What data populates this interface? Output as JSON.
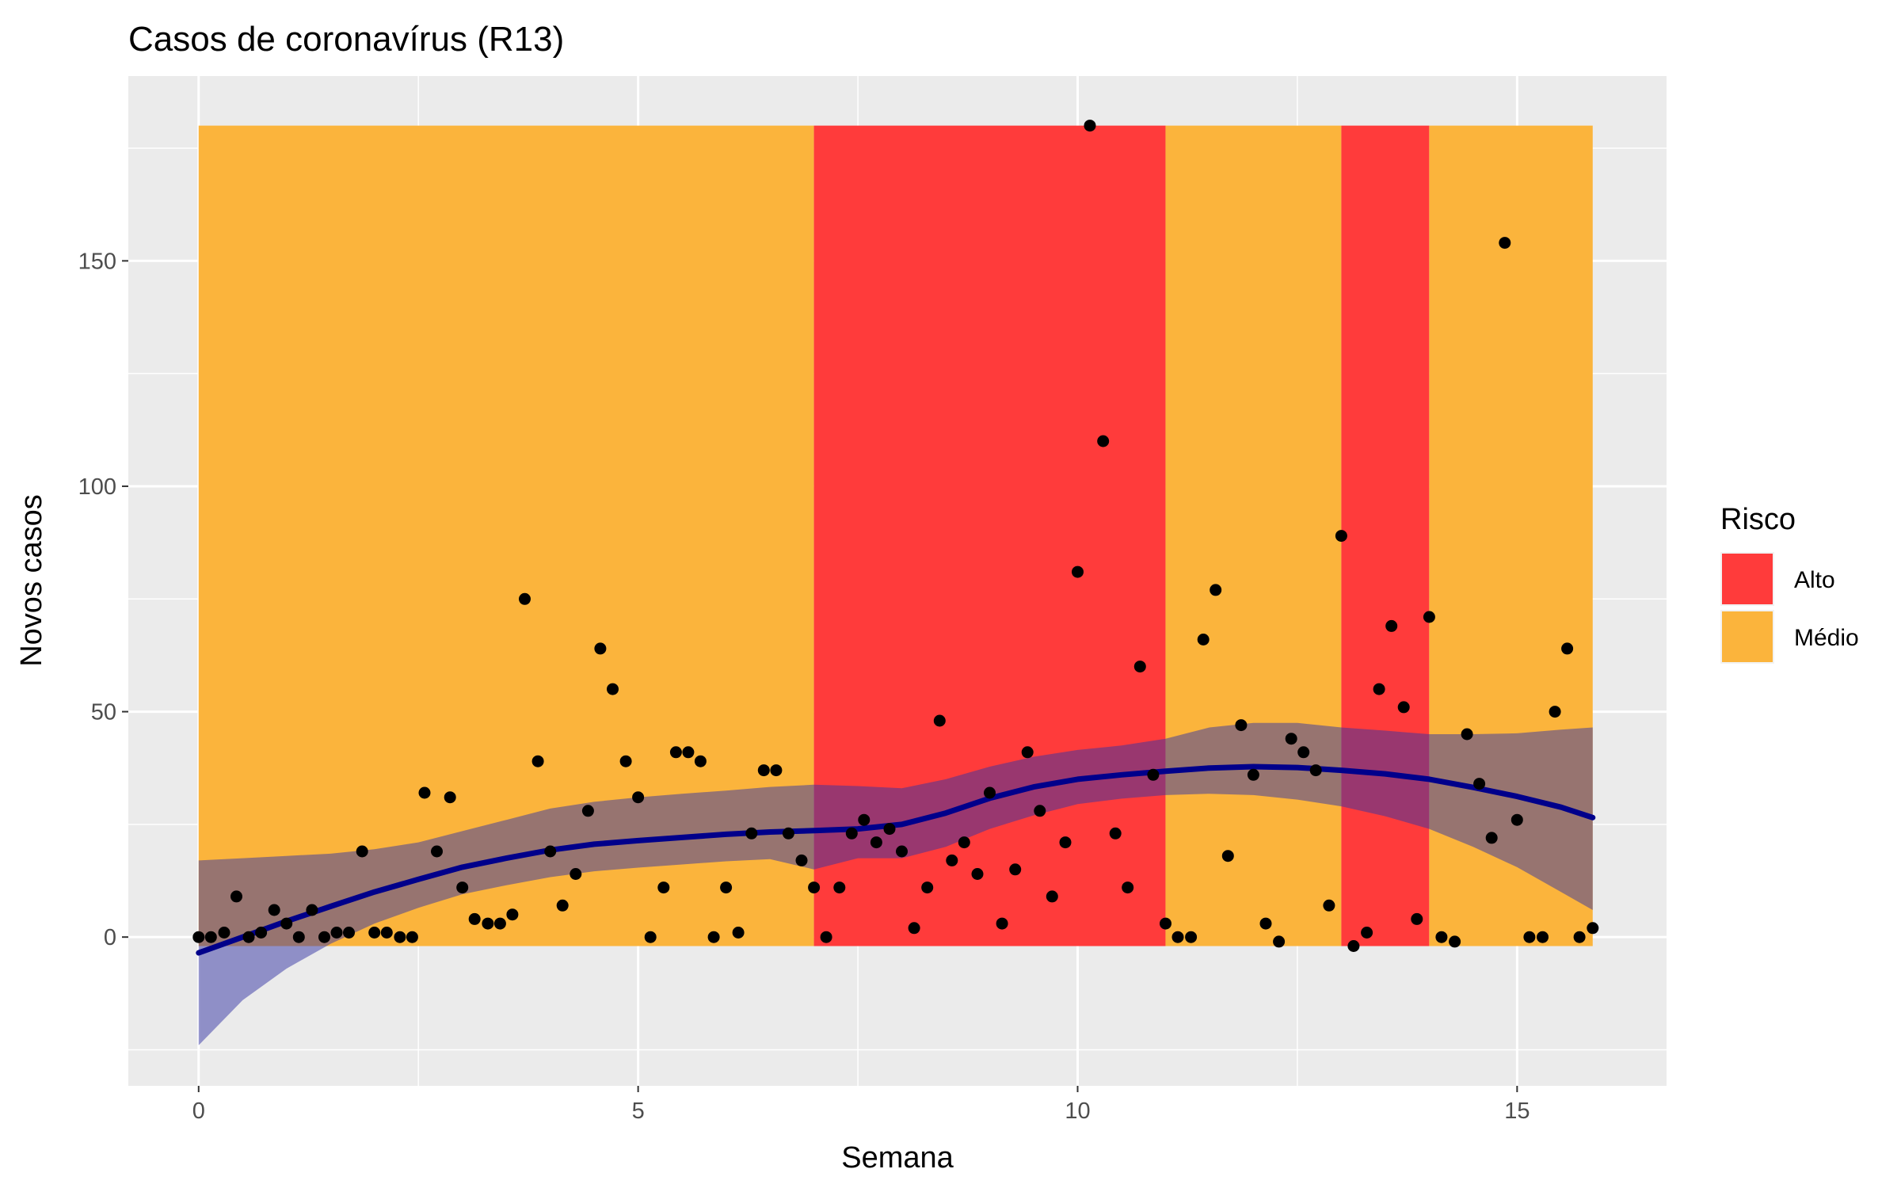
{
  "chart_data": {
    "type": "scatter",
    "title": "Casos de coronavírus (R13)",
    "xlabel": "Semana",
    "ylabel": "Novos casos",
    "xlim": [
      -0.8,
      16.7
    ],
    "ylim": [
      -33,
      191
    ],
    "x_ticks": [
      0,
      5,
      10,
      15
    ],
    "y_ticks": [
      0,
      50,
      100,
      150
    ],
    "x_tick_labels": [
      "0",
      "5",
      "10",
      "15"
    ],
    "y_tick_labels": [
      "0",
      "50",
      "100",
      "150"
    ],
    "grid": true,
    "legend": {
      "title": "Risco",
      "position": "right",
      "entries": [
        {
          "label": "Alto",
          "color": "#ff3b3b"
        },
        {
          "label": "Médio",
          "color": "#fbb43c"
        }
      ]
    },
    "colors": {
      "panel": "#ebebeb",
      "grid": "#ffffff",
      "alto": "#ff3b3b",
      "medio": "#fbb43c",
      "points": "#000000",
      "trend": "#00008b",
      "ribbon": "#3333a3"
    },
    "risk_bands": [
      {
        "risk": "Médio",
        "x_start": 0,
        "x_end": 7,
        "y_min": -2,
        "y_max": 180
      },
      {
        "risk": "Alto",
        "x_start": 7,
        "x_end": 11,
        "y_min": -2,
        "y_max": 180
      },
      {
        "risk": "Médio",
        "x_start": 11,
        "x_end": 13,
        "y_min": -2,
        "y_max": 180
      },
      {
        "risk": "Alto",
        "x_start": 13,
        "x_end": 14,
        "y_min": -2,
        "y_max": 180
      },
      {
        "risk": "Médio",
        "x_start": 14,
        "x_end": 15.86,
        "y_min": -2,
        "y_max": 180
      }
    ],
    "points": [
      [
        0,
        0
      ],
      [
        0.14,
        0
      ],
      [
        0.29,
        1
      ],
      [
        0.43,
        9
      ],
      [
        0.57,
        0
      ],
      [
        0.71,
        1
      ],
      [
        0.86,
        6
      ],
      [
        1.0,
        3
      ],
      [
        1.14,
        0
      ],
      [
        1.29,
        6
      ],
      [
        1.43,
        0
      ],
      [
        1.57,
        1
      ],
      [
        1.71,
        1
      ],
      [
        1.86,
        19
      ],
      [
        2.0,
        1
      ],
      [
        2.14,
        1
      ],
      [
        2.29,
        0
      ],
      [
        2.43,
        0
      ],
      [
        2.57,
        32
      ],
      [
        2.71,
        19
      ],
      [
        2.86,
        31
      ],
      [
        3.0,
        11
      ],
      [
        3.14,
        4
      ],
      [
        3.29,
        3
      ],
      [
        3.43,
        3
      ],
      [
        3.57,
        5
      ],
      [
        3.71,
        75
      ],
      [
        3.86,
        39
      ],
      [
        4.0,
        19
      ],
      [
        4.14,
        7
      ],
      [
        4.29,
        14
      ],
      [
        4.43,
        28
      ],
      [
        4.57,
        64
      ],
      [
        4.71,
        55
      ],
      [
        4.86,
        39
      ],
      [
        5.0,
        31
      ],
      [
        5.14,
        0
      ],
      [
        5.29,
        11
      ],
      [
        5.43,
        41
      ],
      [
        5.57,
        41
      ],
      [
        5.71,
        39
      ],
      [
        5.86,
        0
      ],
      [
        6.0,
        11
      ],
      [
        6.14,
        1
      ],
      [
        6.29,
        23
      ],
      [
        6.43,
        37
      ],
      [
        6.57,
        37
      ],
      [
        6.71,
        23
      ],
      [
        6.86,
        17
      ],
      [
        7.0,
        11
      ],
      [
        7.14,
        0
      ],
      [
        7.29,
        11
      ],
      [
        7.43,
        23
      ],
      [
        7.57,
        26
      ],
      [
        7.71,
        21
      ],
      [
        7.86,
        24
      ],
      [
        8.0,
        19
      ],
      [
        8.14,
        2
      ],
      [
        8.29,
        11
      ],
      [
        8.43,
        48
      ],
      [
        8.57,
        17
      ],
      [
        8.71,
        21
      ],
      [
        8.86,
        14
      ],
      [
        9.0,
        32
      ],
      [
        9.14,
        3
      ],
      [
        9.29,
        15
      ],
      [
        9.43,
        41
      ],
      [
        9.57,
        28
      ],
      [
        9.71,
        9
      ],
      [
        9.86,
        21
      ],
      [
        10.0,
        81
      ],
      [
        10.14,
        180
      ],
      [
        10.29,
        110
      ],
      [
        10.43,
        23
      ],
      [
        10.57,
        11
      ],
      [
        10.71,
        60
      ],
      [
        10.86,
        36
      ],
      [
        11.0,
        3
      ],
      [
        11.14,
        0
      ],
      [
        11.29,
        0
      ],
      [
        11.43,
        66
      ],
      [
        11.57,
        77
      ],
      [
        11.71,
        18
      ],
      [
        11.86,
        47
      ],
      [
        12.0,
        36
      ],
      [
        12.14,
        3
      ],
      [
        12.29,
        -1
      ],
      [
        12.43,
        44
      ],
      [
        12.57,
        41
      ],
      [
        12.71,
        37
      ],
      [
        12.86,
        7
      ],
      [
        13.0,
        89
      ],
      [
        13.14,
        -2
      ],
      [
        13.29,
        1
      ],
      [
        13.43,
        55
      ],
      [
        13.57,
        69
      ],
      [
        13.71,
        51
      ],
      [
        13.86,
        4
      ],
      [
        14.0,
        71
      ],
      [
        14.14,
        0
      ],
      [
        14.29,
        -1
      ],
      [
        14.43,
        45
      ],
      [
        14.57,
        34
      ],
      [
        14.71,
        22
      ],
      [
        14.86,
        154
      ],
      [
        15.0,
        26
      ],
      [
        15.14,
        0
      ],
      [
        15.29,
        0
      ],
      [
        15.43,
        50
      ],
      [
        15.57,
        64
      ],
      [
        15.71,
        0
      ],
      [
        15.86,
        2
      ]
    ],
    "trend": {
      "x": [
        0,
        0.5,
        1,
        1.5,
        2,
        2.5,
        3,
        3.5,
        4,
        4.5,
        5,
        5.5,
        6,
        6.5,
        7,
        7.5,
        8,
        8.5,
        9,
        9.5,
        10,
        10.5,
        11,
        11.5,
        12,
        12.5,
        13,
        13.5,
        14,
        14.5,
        15,
        15.5,
        15.86
      ],
      "y": [
        -3.5,
        0,
        3.5,
        6.8,
        10,
        12.8,
        15.5,
        17.5,
        19.3,
        20.6,
        21.4,
        22.1,
        22.8,
        23.3,
        23.6,
        24,
        25,
        27.5,
        30.8,
        33.3,
        35,
        36,
        36.8,
        37.5,
        37.8,
        37.6,
        37,
        36.2,
        35,
        33.2,
        31.2,
        28.8,
        26.5
      ]
    },
    "ci_lower": [
      -24,
      -14,
      -7,
      -1.5,
      3,
      6.5,
      9.5,
      11.5,
      13.3,
      14.6,
      15.4,
      16.1,
      16.8,
      17.3,
      15,
      17.5,
      17.5,
      20,
      24,
      27,
      29.5,
      30.7,
      31.5,
      31.8,
      31.5,
      30.5,
      29,
      26.8,
      24,
      20,
      15.5,
      10,
      6
    ],
    "ci_upper": [
      17,
      17.5,
      18,
      18.5,
      19.5,
      21,
      23.5,
      26,
      28.5,
      30,
      31,
      31.8,
      32.5,
      33.3,
      33.8,
      33.5,
      33,
      35,
      37.8,
      40,
      41.5,
      42.5,
      44,
      46.5,
      47.5,
      47.5,
      46.5,
      45.8,
      45,
      45,
      45.2,
      46,
      46.5
    ]
  }
}
